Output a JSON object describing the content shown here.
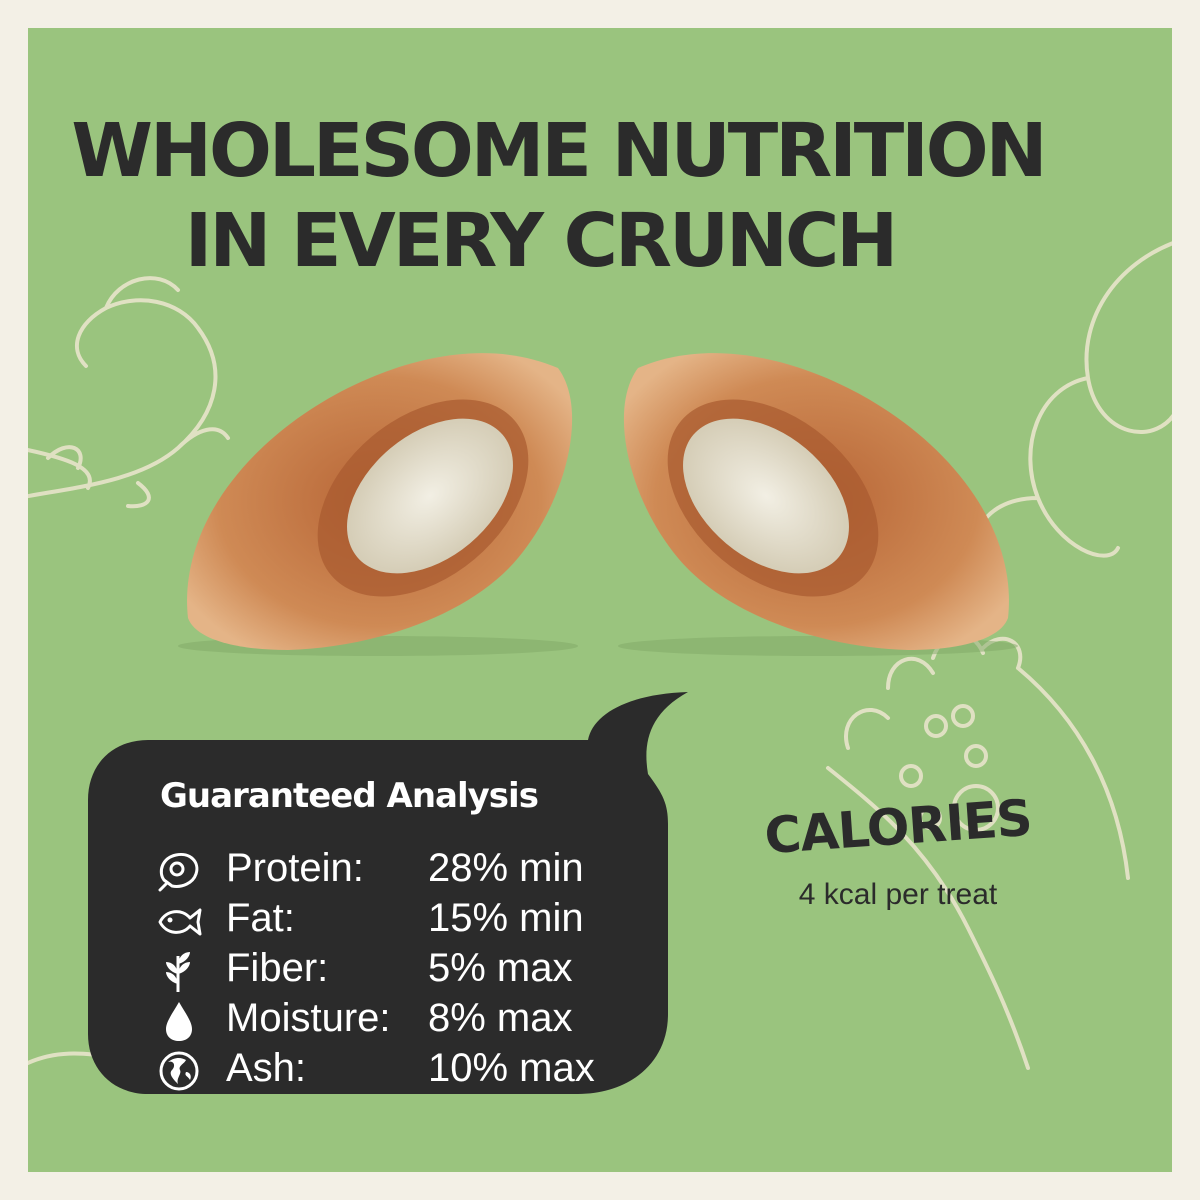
{
  "headline": {
    "line1": "WHOLESOME NUTRITION",
    "line2": "IN EVERY CRUNCH"
  },
  "analysis": {
    "title": "Guaranteed Analysis",
    "rows": [
      {
        "icon": "meat-icon",
        "label": "Protein:",
        "value": "28% min"
      },
      {
        "icon": "fish-icon",
        "label": "Fat:",
        "value": "15% min"
      },
      {
        "icon": "plant-icon",
        "label": "Fiber:",
        "value": "5% max"
      },
      {
        "icon": "water-drop-icon",
        "label": "Moisture:",
        "value": "8% max"
      },
      {
        "icon": "globe-icon",
        "label": "Ash:",
        "value": "10% max"
      }
    ]
  },
  "calories": {
    "title": "CALORIES",
    "value": "4 kcal per treat"
  },
  "colors": {
    "background": "#9ac47e",
    "border": "#f3f0e6",
    "bubble": "#2b2b2b",
    "text_dark": "#2b2b2b",
    "text_light": "#ffffff",
    "treat_crust": "#c9824f",
    "treat_filling": "#e9e4d4"
  }
}
